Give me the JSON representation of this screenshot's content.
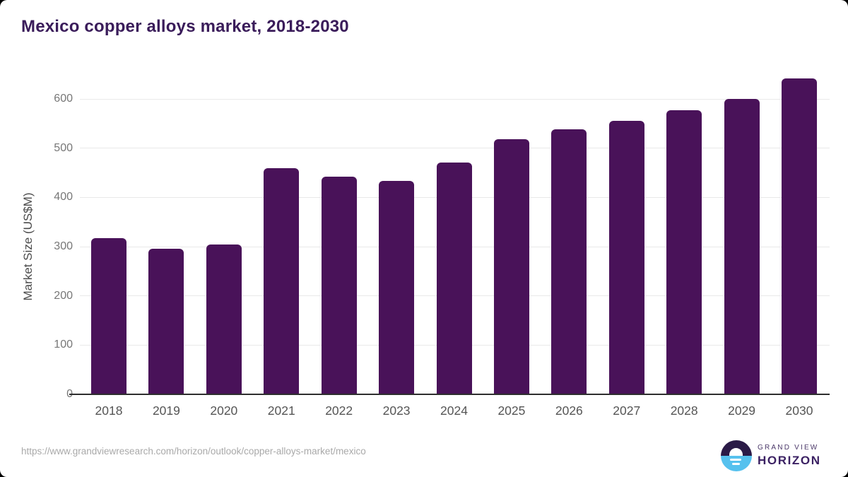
{
  "title": "Mexico copper alloys market, 2018-2030",
  "chart_data": {
    "type": "bar",
    "title": "Mexico copper alloys market, 2018-2030",
    "categories": [
      "2018",
      "2019",
      "2020",
      "2021",
      "2022",
      "2023",
      "2024",
      "2025",
      "2026",
      "2027",
      "2028",
      "2029",
      "2030"
    ],
    "values": [
      317,
      295,
      305,
      460,
      442,
      433,
      471,
      518,
      538,
      556,
      577,
      600,
      641
    ],
    "xlabel": "",
    "ylabel": "Market Size (US$M)",
    "yticks": [
      0,
      100,
      200,
      300,
      400,
      500,
      600
    ],
    "ylim": [
      0,
      650
    ],
    "grid": "horizontal",
    "legend": "none",
    "bar_color": "#491259"
  },
  "colors": {
    "bar": "#491259",
    "title": "#3a1c5a",
    "gridline": "#e9e9e9",
    "axis_line": "#2e2e2e",
    "ytick_label": "#777777",
    "xtick_label": "#555555",
    "url": "#a9a9a9",
    "logo_dark": "#2b1b47",
    "logo_blue": "#56c1ee"
  },
  "footer": {
    "url": "https://www.grandviewresearch.com/horizon/outlook/copper-alloys-market/mexico"
  },
  "logo": {
    "top_text": "GRAND VIEW",
    "bottom_text": "HORIZON"
  }
}
